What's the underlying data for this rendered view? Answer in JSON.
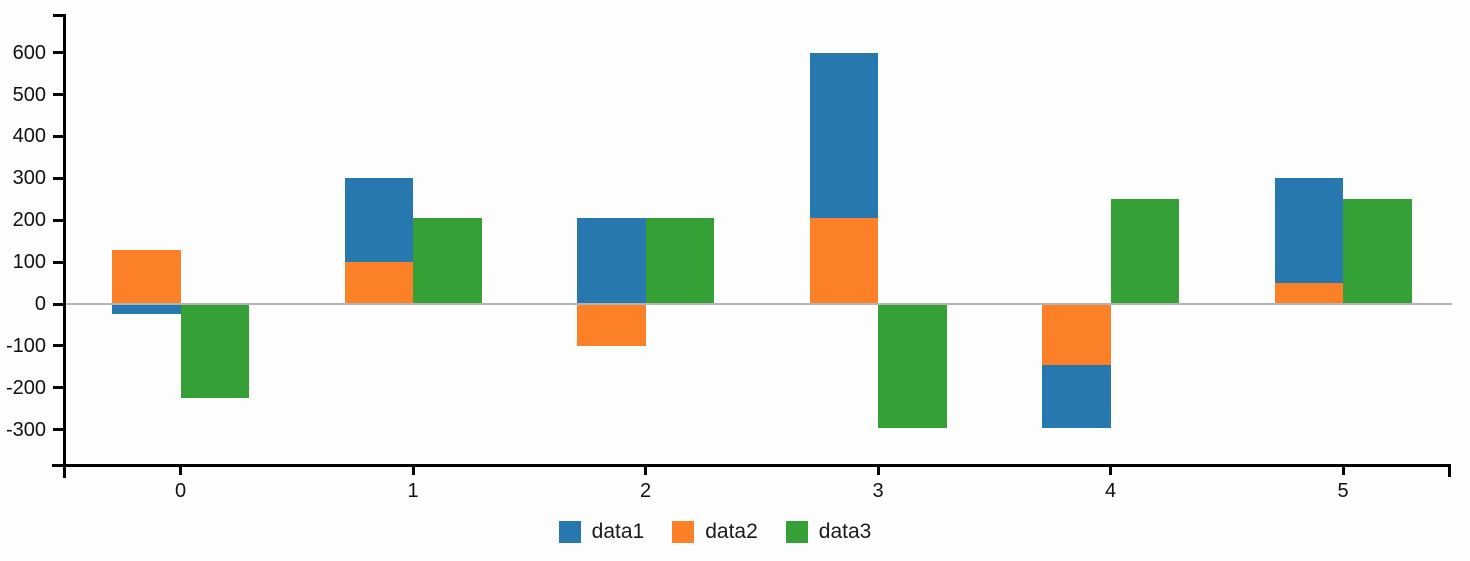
{
  "chart_data": {
    "type": "bar",
    "title": "",
    "xlabel": "",
    "ylabel": "",
    "categories": [
      "0",
      "1",
      "2",
      "3",
      "4",
      "5"
    ],
    "series": [
      {
        "name": "data1",
        "color": "#2878b0",
        "values": [
          -25,
          200,
          205,
          395,
          -150,
          250
        ]
      },
      {
        "name": "data2",
        "color": "#fb8028",
        "values": [
          130,
          100,
          -100,
          205,
          -145,
          50
        ]
      },
      {
        "name": "data3",
        "color": "#35a035",
        "values": [
          -225,
          205,
          205,
          -295,
          250,
          250
        ]
      }
    ],
    "stacking": "data1 and data2 share one stacked column (sign-aware stacking); data3 is a separate column immediately to the right",
    "bars": [
      {
        "category": "0",
        "column": "stack",
        "series": "data2",
        "from": 0,
        "to": 130
      },
      {
        "category": "0",
        "column": "stack",
        "series": "data1",
        "from": 0,
        "to": -25
      },
      {
        "category": "0",
        "column": "solo",
        "series": "data3",
        "from": 0,
        "to": -225
      },
      {
        "category": "1",
        "column": "stack",
        "series": "data2",
        "from": 0,
        "to": 100
      },
      {
        "category": "1",
        "column": "stack",
        "series": "data1",
        "from": 100,
        "to": 300
      },
      {
        "category": "1",
        "column": "solo",
        "series": "data3",
        "from": 0,
        "to": 205
      },
      {
        "category": "2",
        "column": "stack",
        "series": "data2",
        "from": 0,
        "to": -100
      },
      {
        "category": "2",
        "column": "stack",
        "series": "data1",
        "from": 0,
        "to": 205
      },
      {
        "category": "2",
        "column": "solo",
        "series": "data3",
        "from": 0,
        "to": 205
      },
      {
        "category": "3",
        "column": "stack",
        "series": "data2",
        "from": 0,
        "to": 205
      },
      {
        "category": "3",
        "column": "stack",
        "series": "data1",
        "from": 205,
        "to": 600
      },
      {
        "category": "3",
        "column": "solo",
        "series": "data3",
        "from": 0,
        "to": -295
      },
      {
        "category": "4",
        "column": "stack",
        "series": "data2",
        "from": 0,
        "to": -145
      },
      {
        "category": "4",
        "column": "stack",
        "series": "data1",
        "from": -145,
        "to": -295
      },
      {
        "category": "4",
        "column": "solo",
        "series": "data3",
        "from": 0,
        "to": 250
      },
      {
        "category": "5",
        "column": "stack",
        "series": "data2",
        "from": 0,
        "to": 50
      },
      {
        "category": "5",
        "column": "stack",
        "series": "data1",
        "from": 50,
        "to": 300
      },
      {
        "category": "5",
        "column": "solo",
        "series": "data3",
        "from": 0,
        "to": 250
      }
    ],
    "y_ticks": [
      "600",
      "500",
      "400",
      "300",
      "200",
      "100",
      "0",
      "-100",
      "-200",
      "-300"
    ],
    "x_ticks": [
      "0",
      "1",
      "2",
      "3",
      "4",
      "5"
    ],
    "ylim": [
      -385,
      692
    ],
    "grid": false,
    "zero_line": true,
    "legend_position": "bottom-center"
  },
  "legend": {
    "items": [
      {
        "label": "data1",
        "color": "#2878b0"
      },
      {
        "label": "data2",
        "color": "#fb8028"
      },
      {
        "label": "data3",
        "color": "#35a035"
      }
    ]
  },
  "colors": {
    "axis": "#000000",
    "zero_line": "#b3b3b3",
    "tick_label": "#111111",
    "background": "#fdfdfd"
  }
}
